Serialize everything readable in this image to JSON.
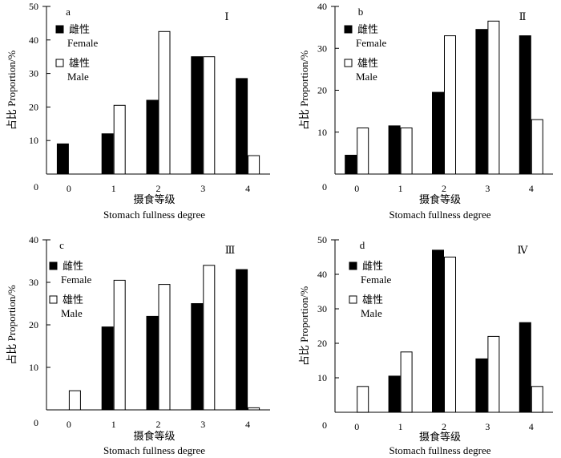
{
  "figure": {
    "xlabel_cn": "摄食等级",
    "xlabel_en": "Stomach fullness degree",
    "ylabel": "占比 Proportion/%"
  },
  "chart_data": [
    {
      "type": "bar",
      "panel": "a",
      "roman": "Ⅰ",
      "categories": [
        "0",
        "1",
        "2",
        "3",
        "4"
      ],
      "series": [
        {
          "name": "雌性 Female",
          "name_cn": "雌性",
          "name_en": "Female",
          "color": "#000000",
          "values": [
            9,
            12,
            22,
            35,
            28.5
          ]
        },
        {
          "name": "雄性 Male",
          "name_cn": "雄性",
          "name_en": "Male",
          "color": "#ffffff",
          "values": [
            0,
            20.5,
            42.5,
            35,
            5.5
          ]
        }
      ],
      "ylim": [
        0,
        50
      ],
      "yticks": [
        0,
        10,
        20,
        30,
        40,
        50
      ],
      "xlabel": "摄食等级 Stomach fullness degree",
      "ylabel": "占比 Proportion/%",
      "legend": "top-left"
    },
    {
      "type": "bar",
      "panel": "b",
      "roman": "Ⅱ",
      "categories": [
        "0",
        "1",
        "2",
        "3",
        "4"
      ],
      "series": [
        {
          "name": "雌性 Female",
          "name_cn": "雌性",
          "name_en": "Female",
          "color": "#000000",
          "values": [
            4.5,
            11.5,
            19.5,
            34.5,
            33
          ]
        },
        {
          "name": "雄性 Male",
          "name_cn": "雄性",
          "name_en": "Male",
          "color": "#ffffff",
          "values": [
            11,
            11,
            33,
            36.5,
            13
          ]
        }
      ],
      "ylim": [
        0,
        40
      ],
      "yticks": [
        0,
        10,
        20,
        30,
        40
      ],
      "xlabel": "摄食等级 Stomach fullness degree",
      "ylabel": "占比 Proportion/%",
      "legend": "top-left"
    },
    {
      "type": "bar",
      "panel": "c",
      "roman": "Ⅲ",
      "categories": [
        "0",
        "1",
        "2",
        "3",
        "4"
      ],
      "series": [
        {
          "name": "雌性 Female",
          "name_cn": "雌性",
          "name_en": "Female",
          "color": "#000000",
          "values": [
            0,
            19.5,
            22,
            25,
            33
          ]
        },
        {
          "name": "雄性 Male",
          "name_cn": "雄性",
          "name_en": "Male",
          "color": "#ffffff",
          "values": [
            4.5,
            30.5,
            29.5,
            34,
            0.5
          ]
        }
      ],
      "ylim": [
        0,
        40
      ],
      "yticks": [
        0,
        10,
        20,
        30,
        40
      ],
      "xlabel": "摄食等级 Stomach fullness degree",
      "ylabel": "占比 Proportion/%",
      "legend": "top-left"
    },
    {
      "type": "bar",
      "panel": "d",
      "roman": "Ⅳ",
      "categories": [
        "0",
        "1",
        "2",
        "3",
        "4"
      ],
      "series": [
        {
          "name": "雌性 Female",
          "name_cn": "雌性",
          "name_en": "Female",
          "color": "#000000",
          "values": [
            0,
            10.5,
            47,
            15.5,
            26
          ]
        },
        {
          "name": "雄性 Male",
          "name_cn": "雄性",
          "name_en": "Male",
          "color": "#ffffff",
          "values": [
            7.5,
            17.5,
            45,
            22,
            7.5
          ]
        }
      ],
      "ylim": [
        0,
        50
      ],
      "yticks": [
        0,
        10,
        20,
        30,
        40,
        50
      ],
      "xlabel": "摄食等级 Stomach fullness degree",
      "ylabel": "占比 Proportion/%",
      "legend": "top-left"
    }
  ]
}
